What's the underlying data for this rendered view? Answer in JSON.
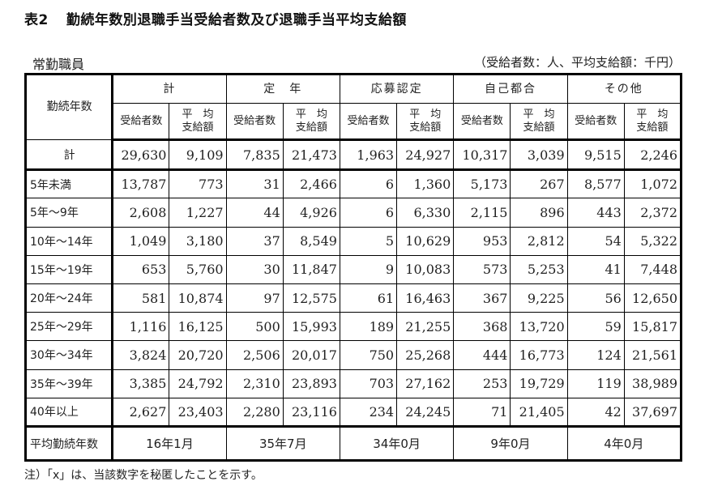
{
  "title": {
    "number": "表2",
    "text": "勤続年数別退職手当受給者数及び退職手当平均支給額"
  },
  "subtitle": "常勤職員",
  "units": "（受給者数：人、平均支給額：千円）",
  "table": {
    "row_header": "勤続年数",
    "groups": [
      "計",
      "定　年",
      "応募認定",
      "自己都合",
      "その他"
    ],
    "sub_headers": {
      "count": "受給者数",
      "avg_line1": "平　均",
      "avg_line2": "支給額"
    },
    "rows": [
      {
        "label": "計",
        "values": [
          "29,630",
          "9,109",
          "7,835",
          "21,473",
          "1,963",
          "24,927",
          "10,317",
          "3,039",
          "9,515",
          "2,246"
        ]
      },
      {
        "label": "5年未満",
        "values": [
          "13,787",
          "773",
          "31",
          "2,466",
          "6",
          "1,360",
          "5,173",
          "267",
          "8,577",
          "1,072"
        ]
      },
      {
        "label": "5年～9年",
        "values": [
          "2,608",
          "1,227",
          "44",
          "4,926",
          "6",
          "6,330",
          "2,115",
          "896",
          "443",
          "2,372"
        ]
      },
      {
        "label": "10年～14年",
        "values": [
          "1,049",
          "3,180",
          "37",
          "8,549",
          "5",
          "10,629",
          "953",
          "2,812",
          "54",
          "5,322"
        ]
      },
      {
        "label": "15年～19年",
        "values": [
          "653",
          "5,760",
          "30",
          "11,847",
          "9",
          "10,083",
          "573",
          "5,253",
          "41",
          "7,448"
        ]
      },
      {
        "label": "20年～24年",
        "values": [
          "581",
          "10,874",
          "97",
          "12,575",
          "61",
          "16,463",
          "367",
          "9,225",
          "56",
          "12,650"
        ]
      },
      {
        "label": "25年～29年",
        "values": [
          "1,116",
          "16,125",
          "500",
          "15,993",
          "189",
          "21,255",
          "368",
          "13,720",
          "59",
          "15,817"
        ]
      },
      {
        "label": "30年～34年",
        "values": [
          "3,824",
          "20,720",
          "2,506",
          "20,017",
          "750",
          "25,268",
          "444",
          "16,773",
          "124",
          "21,561"
        ]
      },
      {
        "label": "35年～39年",
        "values": [
          "3,385",
          "24,792",
          "2,310",
          "23,893",
          "703",
          "27,162",
          "253",
          "19,729",
          "119",
          "38,989"
        ]
      },
      {
        "label": "40年以上",
        "values": [
          "2,627",
          "23,403",
          "2,280",
          "23,116",
          "234",
          "24,245",
          "71",
          "21,405",
          "42",
          "37,697"
        ]
      }
    ],
    "average_years": {
      "label": "平均勤続年数",
      "values": [
        "16年1月",
        "35年7月",
        "34年0月",
        "9年0月",
        "4年0月"
      ]
    }
  },
  "note": "注）「x」は、当該数字を秘匿したことを示す。"
}
